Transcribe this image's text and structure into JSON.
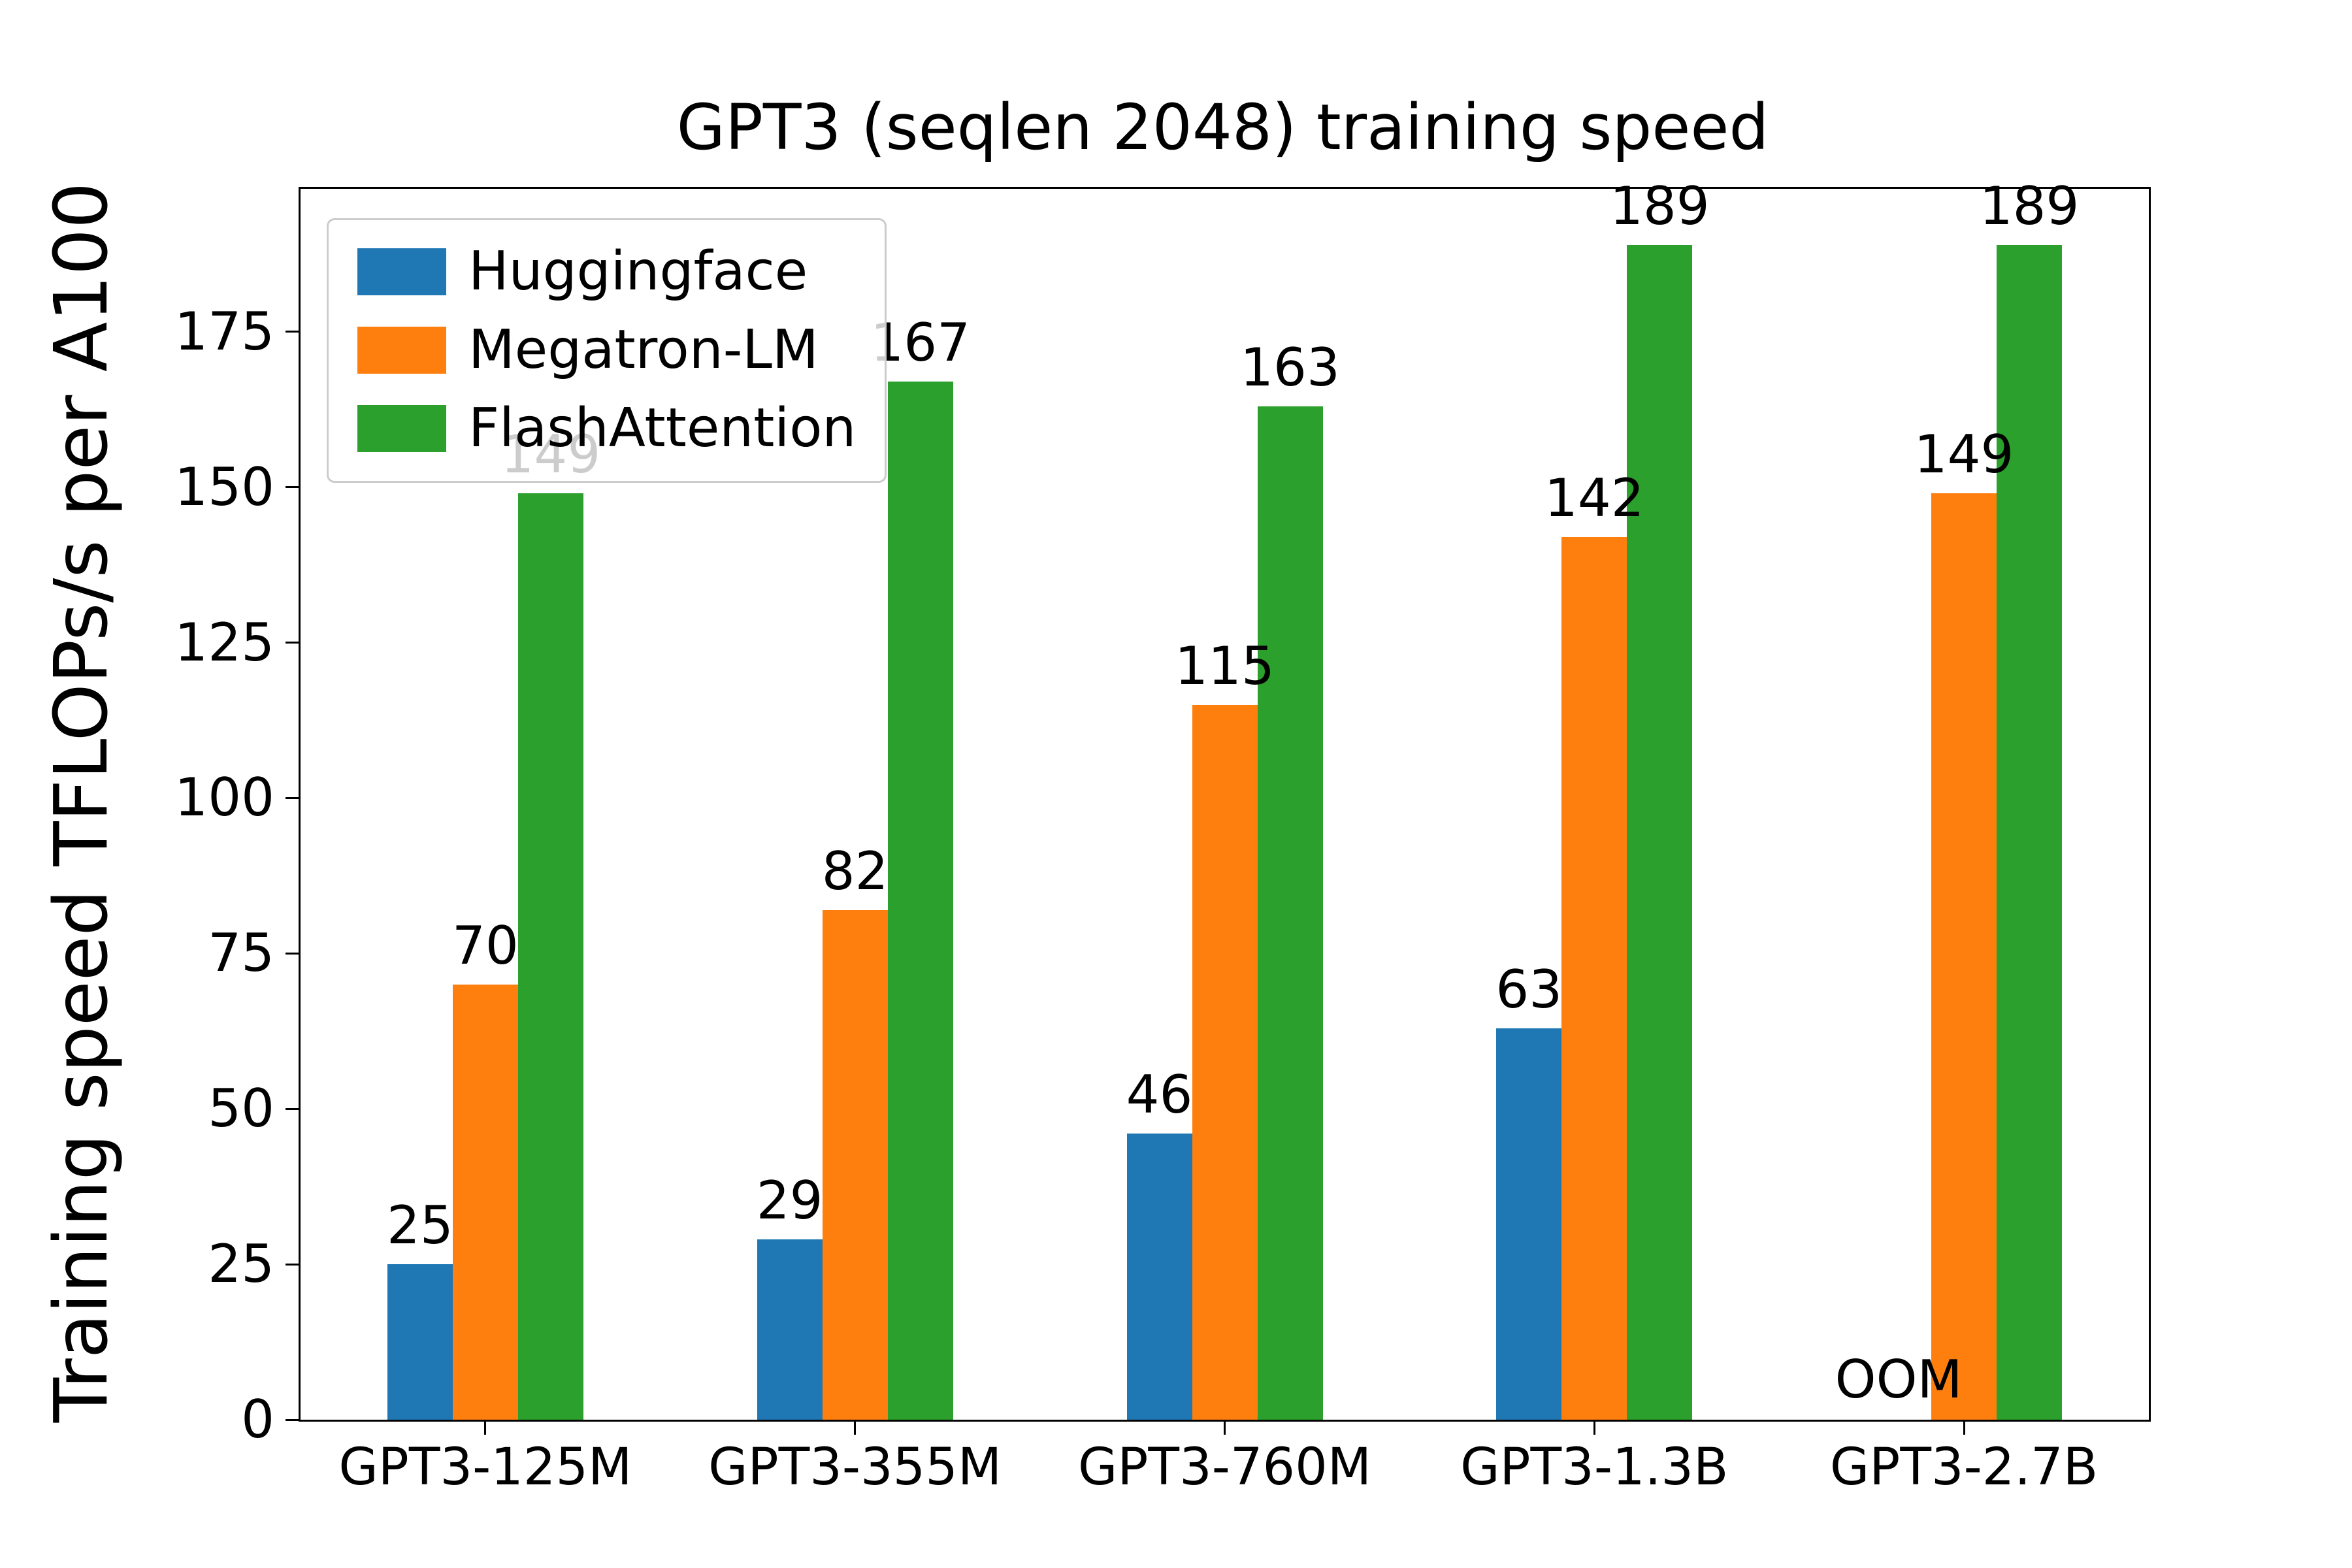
{
  "chart_data": {
    "type": "bar",
    "title": "GPT3 (seqlen 2048) training speed",
    "ylabel": "Training speed TFLOPs/s per A100",
    "xlabel": "",
    "categories": [
      "GPT3-125M",
      "GPT3-355M",
      "GPT3-760M",
      "GPT3-1.3B",
      "GPT3-2.7B"
    ],
    "series": [
      {
        "name": "Huggingface",
        "color": "#1f77b4",
        "values": [
          25,
          29,
          46,
          63,
          null
        ]
      },
      {
        "name": "Megatron-LM",
        "color": "#ff7f0e",
        "values": [
          70,
          82,
          115,
          142,
          149
        ]
      },
      {
        "name": "FlashAttention",
        "color": "#2ca02c",
        "values": [
          149,
          167,
          163,
          189,
          189
        ]
      }
    ],
    "null_label": "OOM",
    "ylim": [
      0,
      198
    ],
    "yticks": [
      0,
      25,
      50,
      75,
      100,
      125,
      150,
      175
    ],
    "legend_position": "upper-left",
    "grid": false
  }
}
